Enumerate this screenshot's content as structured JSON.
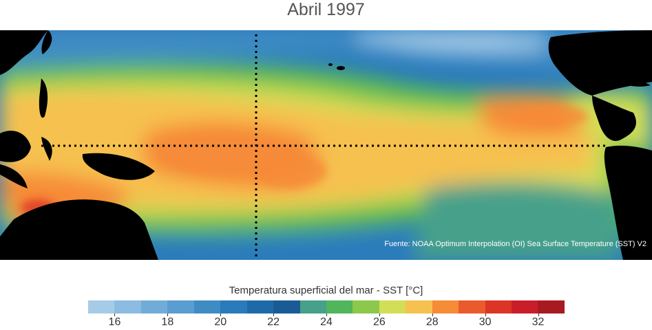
{
  "title": "Abril 1997",
  "source": "Fuente: NOAA Optimum Interpolation (OI) Sea Surface Temperature (SST) V2",
  "legend": {
    "title": "Temperatura superficial del mar - SST  [°C]",
    "range": [
      15,
      33
    ],
    "ticks": [
      16,
      18,
      20,
      22,
      24,
      26,
      28,
      30,
      32
    ],
    "colors": [
      "#a6cbe6",
      "#8cbce1",
      "#71acd8",
      "#5a9dd0",
      "#3f8cc5",
      "#2a7bbb",
      "#1e6aa8",
      "#1a5b96",
      "#46a08a",
      "#50b55b",
      "#8cc84b",
      "#d3de57",
      "#f6c150",
      "#f68b38",
      "#ea5a2c",
      "#dc3526",
      "#c91e2a",
      "#a81a22"
    ]
  },
  "map": {
    "land_color": "#000000",
    "guides": "dotted-black",
    "regions": [
      "western-pacific-warm-pool",
      "equatorial-pacific",
      "eastern-pacific",
      "americas",
      "australia",
      "asia"
    ]
  }
}
